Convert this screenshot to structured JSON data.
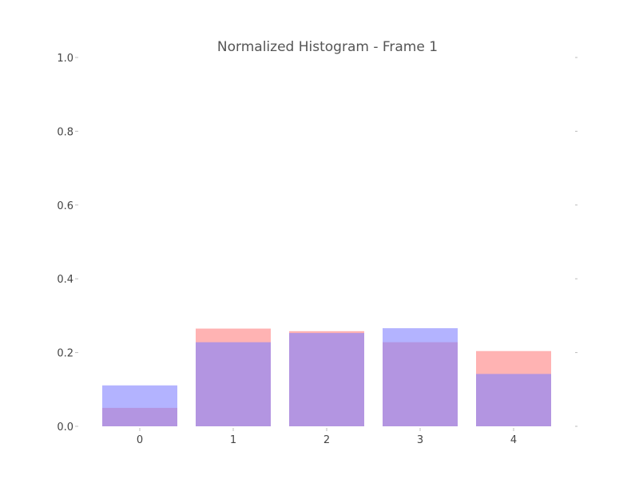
{
  "chart_data": {
    "type": "bar",
    "title": "Normalized Histogram - Frame 1",
    "xlabel": "",
    "ylabel": "",
    "categories": [
      "0",
      "1",
      "2",
      "3",
      "4"
    ],
    "series": [
      {
        "color": "#ff8080",
        "opacity": 0.6,
        "values": [
          0.05,
          0.265,
          0.258,
          0.228,
          0.204
        ]
      },
      {
        "color": "#8080ff",
        "opacity": 0.6,
        "values": [
          0.111,
          0.228,
          0.253,
          0.266,
          0.142
        ]
      }
    ],
    "ylim": [
      0,
      1.0
    ],
    "yticks": [
      "0.0",
      "0.2",
      "0.4",
      "0.6",
      "0.8",
      "1.0"
    ],
    "grid": false,
    "legend": "none"
  }
}
